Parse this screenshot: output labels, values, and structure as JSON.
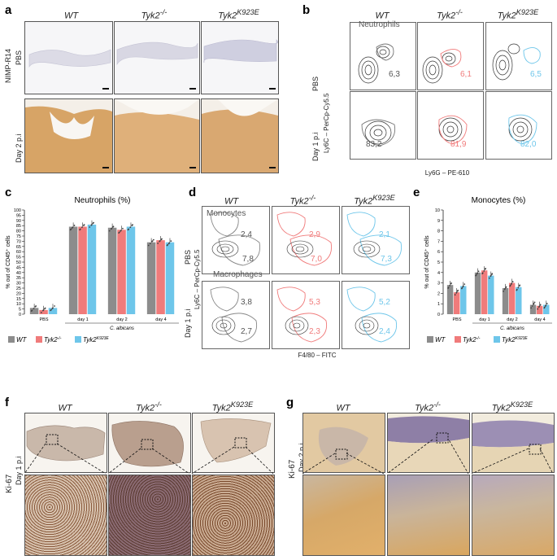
{
  "panels": {
    "a": {
      "label": "a",
      "columns": [
        "WT",
        "Tyk2",
        "Tyk2"
      ],
      "col_sups": [
        "",
        "-/-",
        "K923E"
      ],
      "rows": [
        "PBS",
        "Day 2 p.i"
      ],
      "stain": "NIMP-R14"
    },
    "b": {
      "label": "b",
      "columns": [
        "WT",
        "Tyk2",
        "Tyk2"
      ],
      "col_sups": [
        "",
        "-/-",
        "K923E"
      ],
      "rows": [
        "PBS",
        "Day 1 p.i"
      ],
      "gate_label": "Neutrophils",
      "y_axis": "Ly6C – PerCp-Cy5.5",
      "x_axis": "Ly6G – PE-610",
      "values_pbs": [
        "6,3",
        "6,1",
        "6,5"
      ],
      "values_day1": [
        "83,2",
        "81,9",
        "82,0"
      ]
    },
    "c": {
      "label": "c",
      "title": "Neutrophils (%)",
      "ylabel": "% out of CD45⁺ cells",
      "group_label": "C. albicans"
    },
    "d": {
      "label": "d",
      "columns": [
        "WT",
        "Tyk2",
        "Tyk2"
      ],
      "col_sups": [
        "",
        "-/-",
        "K923E"
      ],
      "rows": [
        "PBS",
        "Day 1 p.i"
      ],
      "gate_mono": "Monocytes",
      "gate_macro": "Macrophages",
      "y_axis": "Ly6C – PerCp-Cy5.5",
      "x_axis": "F4/80 – FITC",
      "mono_pbs": [
        "2,4",
        "2,9",
        "2,1"
      ],
      "macro_pbs": [
        "7,8",
        "7,0",
        "7,3"
      ],
      "mono_day1": [
        "3,8",
        "5,3",
        "5,2"
      ],
      "macro_day1": [
        "2,7",
        "2,3",
        "2,4"
      ]
    },
    "e": {
      "label": "e",
      "title": "Monocytes (%)",
      "ylabel": "% out of CD45⁺ cells",
      "group_label": "C. albicans"
    },
    "f": {
      "label": "f",
      "columns": [
        "WT",
        "Tyk2",
        "Tyk2"
      ],
      "col_sups": [
        "",
        "-/-",
        "K923E"
      ],
      "stain": "Ki-67",
      "row": "Day 1 p.i"
    },
    "g": {
      "label": "g",
      "columns": [
        "WT",
        "Tyk2",
        "Tyk2"
      ],
      "col_sups": [
        "",
        "-/-",
        "K923E"
      ],
      "stain": "Ki-67",
      "row": "Day 2 p.i"
    }
  },
  "legend": [
    {
      "name": "WT",
      "sup": "",
      "color": "#8c8c8c"
    },
    {
      "name": "Tyk2",
      "sup": "-/-",
      "color": "#f07b7b"
    },
    {
      "name": "Tyk2",
      "sup": "K923E",
      "color": "#6ec6ea"
    }
  ],
  "chart_data": [
    {
      "type": "bar",
      "title": "Neutrophils (%)",
      "ylabel": "% out of CD45⁺ cells",
      "ylim": [
        0,
        100
      ],
      "yticks": [
        0,
        5,
        10,
        15,
        20,
        25,
        30,
        35,
        40,
        45,
        50,
        55,
        60,
        65,
        70,
        75,
        80,
        85,
        90,
        95,
        100
      ],
      "categories": [
        "PBS",
        "day 1",
        "day 2",
        "day 4"
      ],
      "series": [
        {
          "name": "WT",
          "values": [
            6,
            84,
            83,
            69
          ]
        },
        {
          "name": "Tyk2-/-",
          "values": [
            4,
            84,
            81,
            71
          ]
        },
        {
          "name": "Tyk2K923E",
          "values": [
            6,
            86,
            84,
            69
          ]
        }
      ]
    },
    {
      "type": "bar",
      "title": "Monocytes (%)",
      "ylabel": "% out of CD45⁺ cells",
      "ylim": [
        0,
        10
      ],
      "yticks": [
        0,
        1,
        2,
        3,
        4,
        5,
        6,
        7,
        8,
        9,
        10
      ],
      "categories": [
        "PBS",
        "day 1",
        "day 2",
        "day 4"
      ],
      "series": [
        {
          "name": "WT",
          "values": [
            2.8,
            4.0,
            2.5,
            0.9
          ]
        },
        {
          "name": "Tyk2-/-",
          "values": [
            2.1,
            4.2,
            3.0,
            0.8
          ]
        },
        {
          "name": "Tyk2K923E",
          "values": [
            2.7,
            3.7,
            2.6,
            0.9
          ]
        }
      ]
    }
  ]
}
